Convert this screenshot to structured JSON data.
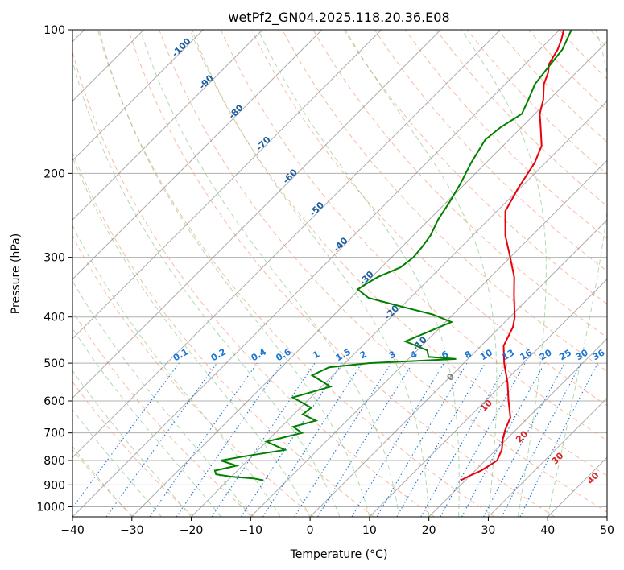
{
  "chart_data": {
    "type": "line",
    "title": "wetPf2_GN04.2025.118.20.36.E08",
    "xlabel": "Temperature (°C)",
    "ylabel": "Pressure (hPa)",
    "xlim": [
      -40,
      50
    ],
    "ylim": [
      1050,
      100
    ],
    "y_scale": "log",
    "x_ticks": [
      -40,
      -30,
      -20,
      -10,
      0,
      10,
      20,
      30,
      40,
      50
    ],
    "y_ticks": [
      100,
      200,
      300,
      400,
      500,
      600,
      700,
      800,
      900,
      1000
    ],
    "grid": true,
    "colors": {
      "temperature": "#e8000b",
      "dewpoint": "#008000",
      "isotherm": "#808080",
      "dry_adiabat": "#f4a582",
      "moist_adiabat": "#7fbf7b",
      "mixing_ratio": "#1f77d4",
      "label_temp": "#1f5f9f",
      "label_moist": "#d62728"
    },
    "series": [
      {
        "key": "temperature",
        "p": [
          880,
          860,
          840,
          800,
          760,
          720,
          690,
          650,
          600,
          550,
          500,
          460,
          420,
          400,
          360,
          330,
          300,
          270,
          240,
          215,
          190,
          175,
          160,
          150,
          140,
          130,
          123,
          118,
          110,
          105,
          100
        ],
        "t": [
          19.2,
          20.0,
          21.0,
          22.0,
          21.0,
          19.3,
          18.2,
          17.0,
          13.9,
          10.7,
          6.8,
          3.8,
          2.2,
          0.8,
          -3.0,
          -6.0,
          -10.0,
          -14.5,
          -18.6,
          -20.3,
          -21.8,
          -23.5,
          -26.8,
          -29.2,
          -31.0,
          -33.5,
          -34.7,
          -36.0,
          -37.0,
          -38.0,
          -39.3
        ]
      },
      {
        "key": "dewpoint",
        "p": [
          880,
          872,
          865,
          855,
          840,
          820,
          800,
          785,
          760,
          730,
          700,
          680,
          660,
          640,
          620,
          590,
          560,
          530,
          510,
          500,
          490,
          485,
          470,
          450,
          430,
          410,
          395,
          380,
          365,
          350,
          340,
          330,
          315,
          300,
          285,
          270,
          250,
          230,
          210,
          190,
          170,
          160,
          150,
          140,
          130,
          120,
          110,
          100
        ],
        "t": [
          -14.0,
          -16.0,
          -20.0,
          -23.0,
          -23.8,
          -21.0,
          -24.5,
          -21.5,
          -15.5,
          -20.0,
          -15.5,
          -18.0,
          -15.2,
          -18.5,
          -18.2,
          -23.0,
          -18.5,
          -23.5,
          -22.0,
          -16.0,
          -2.0,
          -7.0,
          -8.3,
          -13.5,
          -11.3,
          -9.0,
          -13.5,
          -20.2,
          -27.0,
          -30.3,
          -29.7,
          -29.0,
          -26.8,
          -26.3,
          -26.6,
          -27.1,
          -28.5,
          -29.5,
          -30.8,
          -32.5,
          -34.0,
          -33.5,
          -32.2,
          -33.5,
          -35.0,
          -35.6,
          -36.2,
          -38.0
        ]
      }
    ],
    "isotherm_labels": [
      "-100",
      "-90",
      "-80",
      "-70",
      "-60",
      "-50",
      "-40",
      "-30",
      "-20",
      "-10"
    ],
    "mixing_ratio_labels": [
      "0.1",
      "0.2",
      "0.4",
      "0.6",
      "1",
      "1.5",
      "2",
      "3",
      "4",
      "6",
      "8",
      "10",
      "13",
      "16",
      "20",
      "25",
      "30",
      "36"
    ],
    "moist_labels": [
      "0",
      "10",
      "20",
      "30",
      "40"
    ]
  }
}
